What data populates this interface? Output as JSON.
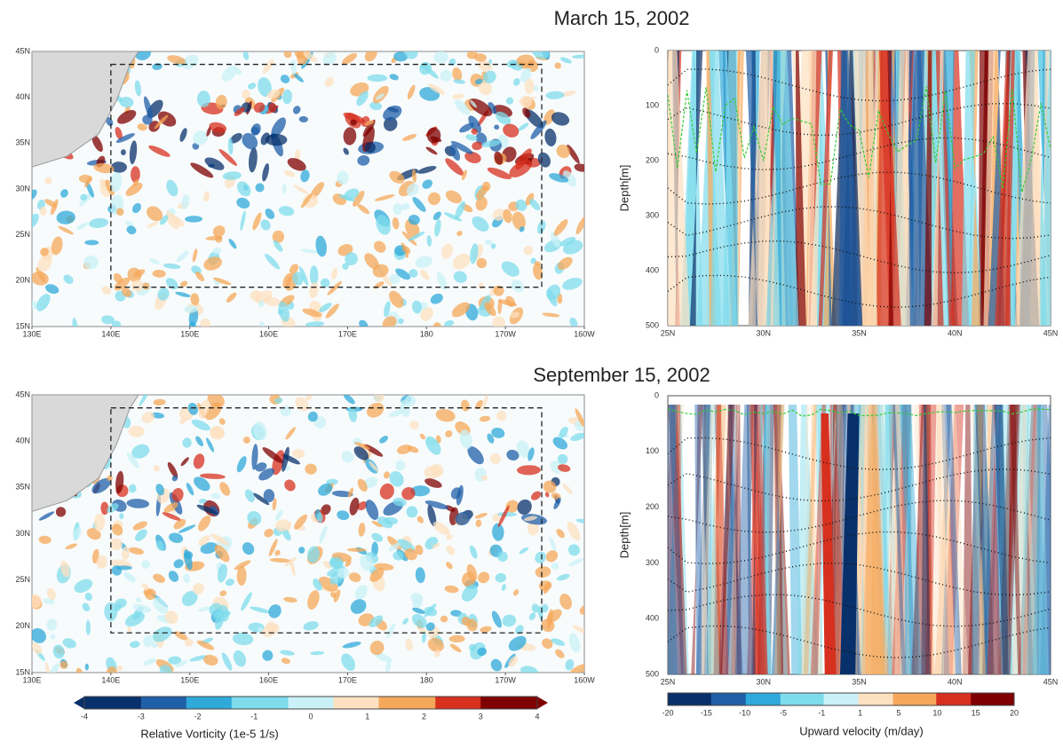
{
  "figure": {
    "titles": [
      "March 15, 2002",
      "September 15, 2002"
    ],
    "map": {
      "xticks": [
        "130E",
        "140E",
        "150E",
        "160E",
        "170E",
        "180",
        "170W",
        "160W"
      ],
      "yticks": [
        "15N",
        "20N",
        "25N",
        "30N",
        "35N",
        "40N",
        "45N"
      ]
    },
    "section": {
      "ylabel": "Depth[m]",
      "yticks": [
        0,
        100,
        200,
        300,
        400,
        500
      ],
      "xticks": [
        "25N",
        "30N",
        "35N",
        "40N",
        "45N"
      ]
    },
    "vorticity_colorbar": {
      "label": "Relative Vorticity (1e-5 1/s)",
      "ticks": [
        -4,
        -3,
        -2,
        -1,
        0,
        1,
        2,
        3,
        4
      ]
    },
    "velocity_colorbar": {
      "label": "Upward velocity (m/day)",
      "ticks": [
        -20,
        -15,
        -10,
        -5,
        -1,
        1,
        5,
        10,
        15,
        20
      ]
    }
  }
}
